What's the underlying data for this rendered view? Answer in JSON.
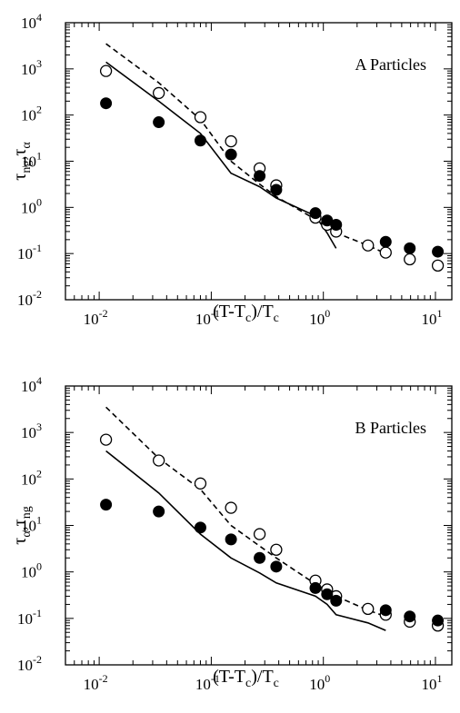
{
  "chart_data": [
    {
      "type": "scatter",
      "title": "",
      "annotation": "A Particles",
      "xlabel": {
        "base": "(T-T",
        "sub1": "c",
        "mid": ")/T",
        "sub2": "c"
      },
      "ylabel": {
        "t1": "τ",
        "s1": "ng",
        "sep": ",",
        "t2": "τ",
        "s2": "α"
      },
      "xscale": "log",
      "yscale": "log",
      "xlim": [
        0.005,
        14
      ],
      "ylim": [
        0.01,
        10000
      ],
      "xticks": [
        0.01,
        0.1,
        1,
        10
      ],
      "yticks": [
        0.01,
        0.1,
        1,
        10,
        100,
        1000,
        10000
      ],
      "series": [
        {
          "style": "open-circle",
          "x": [
            0.0115,
            0.034,
            0.08,
            0.15,
            0.27,
            0.38,
            0.85,
            1.08,
            1.3,
            2.5,
            3.6,
            5.9,
            10.5
          ],
          "y": [
            900,
            300,
            90,
            27,
            7,
            3,
            0.6,
            0.42,
            0.3,
            0.15,
            0.105,
            0.075,
            0.055
          ]
        },
        {
          "style": "filled-circle",
          "x": [
            0.0115,
            0.034,
            0.08,
            0.15,
            0.27,
            0.38,
            0.85,
            1.08,
            1.3,
            3.6,
            5.9,
            10.5
          ],
          "y": [
            180,
            70,
            28,
            14,
            4.8,
            2.4,
            0.75,
            0.52,
            0.42,
            0.18,
            0.13,
            0.11
          ]
        },
        {
          "style": "dashed-line",
          "x": [
            0.0115,
            0.034,
            0.08,
            0.15,
            0.27,
            0.38,
            0.85,
            1.08,
            1.3,
            2.5,
            3.6
          ],
          "y": [
            3500,
            500,
            80,
            10,
            3.2,
            1.7,
            0.55,
            0.38,
            0.28,
            0.15,
            0.1
          ]
        },
        {
          "style": "solid-line",
          "x": [
            0.0115,
            0.034,
            0.08,
            0.15,
            0.27,
            0.38,
            0.85,
            1.08,
            1.3
          ],
          "y": [
            1400,
            200,
            40,
            5.5,
            2.8,
            1.6,
            0.65,
            0.28,
            0.13
          ]
        }
      ]
    },
    {
      "type": "scatter",
      "title": "",
      "annotation": "B Particles",
      "xlabel": {
        "base": "(T-T",
        "sub1": "c",
        "mid": ")/T",
        "sub2": "c"
      },
      "ylabel": {
        "t1": "τ",
        "s1": "α",
        "sep": ",",
        "t2": "τ",
        "s2": "ng"
      },
      "xscale": "log",
      "yscale": "log",
      "xlim": [
        0.005,
        14
      ],
      "ylim": [
        0.01,
        10000
      ],
      "xticks": [
        0.01,
        0.1,
        1,
        10
      ],
      "yticks": [
        0.01,
        0.1,
        1,
        10,
        100,
        1000,
        10000
      ],
      "series": [
        {
          "style": "open-circle",
          "x": [
            0.0115,
            0.034,
            0.08,
            0.15,
            0.27,
            0.38,
            0.85,
            1.08,
            1.3,
            2.5,
            3.6,
            5.9,
            10.5
          ],
          "y": [
            700,
            250,
            80,
            24,
            6.5,
            3,
            0.65,
            0.42,
            0.3,
            0.16,
            0.12,
            0.085,
            0.07
          ]
        },
        {
          "style": "filled-circle",
          "x": [
            0.0115,
            0.034,
            0.08,
            0.15,
            0.27,
            0.38,
            0.85,
            1.08,
            1.3,
            3.6,
            5.9,
            10.5
          ],
          "y": [
            28,
            20,
            9,
            5,
            2,
            1.3,
            0.45,
            0.33,
            0.24,
            0.15,
            0.11,
            0.09
          ]
        },
        {
          "style": "dashed-line",
          "x": [
            0.0115,
            0.034,
            0.08,
            0.15,
            0.27,
            0.38,
            0.85,
            1.08,
            1.3,
            2.5,
            3.6
          ],
          "y": [
            3500,
            280,
            60,
            10,
            3.6,
            2,
            0.55,
            0.4,
            0.3,
            0.15,
            0.11
          ]
        },
        {
          "style": "solid-line",
          "x": [
            0.0115,
            0.034,
            0.08,
            0.15,
            0.27,
            0.38,
            0.85,
            1.08,
            1.3,
            2.5,
            3.6
          ],
          "y": [
            400,
            50,
            6.5,
            2,
            0.95,
            0.58,
            0.3,
            0.2,
            0.12,
            0.08,
            0.055
          ]
        }
      ]
    }
  ]
}
